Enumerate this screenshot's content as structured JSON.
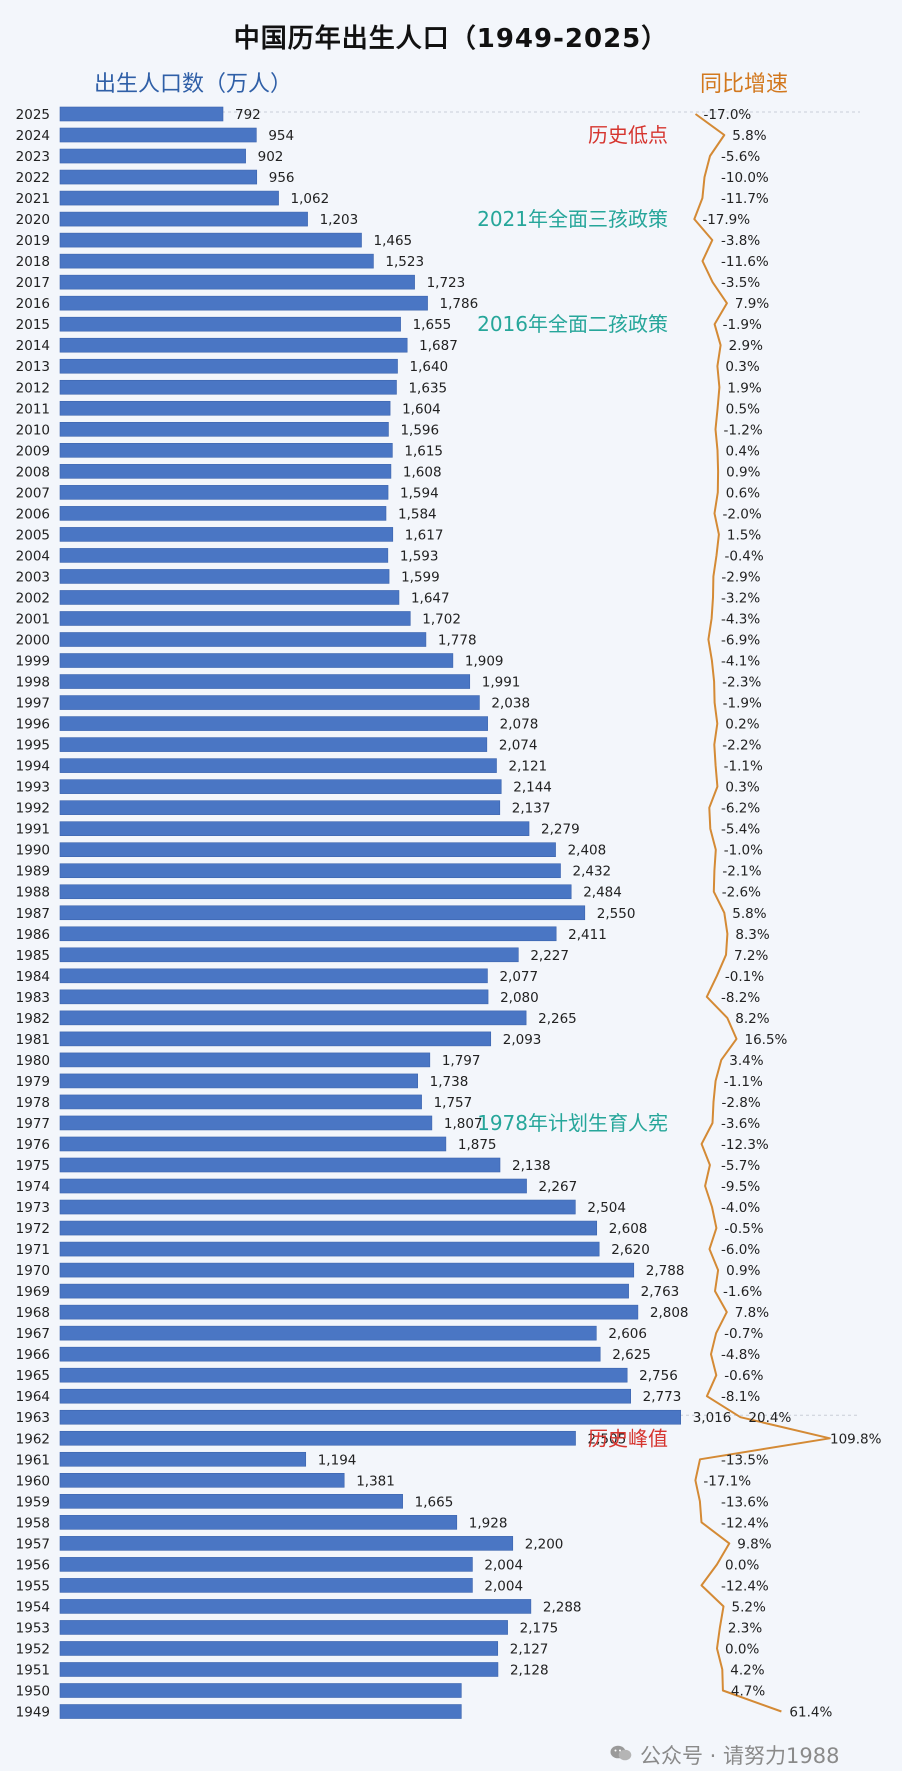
{
  "title": "中国历年出生人口（1949-2025）",
  "left_header": "出生人口数（万人）",
  "right_header": "同比增速",
  "watermark": "公众号 · 请努力1988",
  "colors": {
    "bar": "#4a76c4",
    "bar_edge": "#3c64ad",
    "growth_line": "#d48a35",
    "annotation_red": "#d6352f",
    "annotation_teal": "#26a69a",
    "left_header": "#2f5fa7",
    "right_header": "#d2781e"
  },
  "chart_data": {
    "type": "bar",
    "orientation": "horizontal",
    "categories": [
      "2025",
      "2024",
      "2023",
      "2022",
      "2021",
      "2020",
      "2019",
      "2018",
      "2017",
      "2016",
      "2015",
      "2014",
      "2013",
      "2012",
      "2011",
      "2010",
      "2009",
      "2008",
      "2007",
      "2006",
      "2005",
      "2004",
      "2003",
      "2002",
      "2001",
      "2000",
      "1999",
      "1998",
      "1997",
      "1996",
      "1995",
      "1994",
      "1993",
      "1992",
      "1991",
      "1990",
      "1989",
      "1988",
      "1987",
      "1986",
      "1985",
      "1984",
      "1983",
      "1982",
      "1981",
      "1980",
      "1979",
      "1978",
      "1977",
      "1976",
      "1975",
      "1974",
      "1973",
      "1972",
      "1971",
      "1970",
      "1969",
      "1968",
      "1967",
      "1966",
      "1965",
      "1964",
      "1963",
      "1962",
      "1961",
      "1960",
      "1959",
      "1958",
      "1957",
      "1956",
      "1955",
      "1954",
      "1953",
      "1952",
      "1951",
      "1950",
      "1949"
    ],
    "series": [
      {
        "name": "出生人口数（万人）",
        "values": [
          792,
          954,
          902,
          956,
          1062,
          1203,
          1465,
          1523,
          1723,
          1786,
          1655,
          1687,
          1640,
          1635,
          1604,
          1596,
          1615,
          1608,
          1594,
          1584,
          1617,
          1593,
          1599,
          1647,
          1702,
          1778,
          1909,
          1991,
          2038,
          2078,
          2074,
          2121,
          2144,
          2137,
          2279,
          2408,
          2432,
          2484,
          2550,
          2411,
          2227,
          2077,
          2080,
          2265,
          2093,
          1797,
          1738,
          1757,
          1807,
          1875,
          2138,
          2267,
          2504,
          2608,
          2620,
          2788,
          2763,
          2808,
          2606,
          2625,
          2756,
          2773,
          3016,
          2505,
          1194,
          1381,
          1665,
          1928,
          2200,
          2004,
          2004,
          2288,
          2175,
          2127,
          2128,
          1950,
          1950
        ],
        "labels": [
          "792",
          "954",
          "902",
          "956",
          "1,062",
          "1,203",
          "1,465",
          "1,523",
          "1,723",
          "1,786",
          "1,655",
          "1,687",
          "1,640",
          "1,635",
          "1,604",
          "1,596",
          "1,615",
          "1,608",
          "1,594",
          "1,584",
          "1,617",
          "1,593",
          "1,599",
          "1,647",
          "1,702",
          "1,778",
          "1,909",
          "1,991",
          "2,038",
          "2,078",
          "2,074",
          "2,121",
          "2,144",
          "2,137",
          "2,279",
          "2,408",
          "2,432",
          "2,484",
          "2,550",
          "2,411",
          "2,227",
          "2,077",
          "2,080",
          "2,265",
          "2,093",
          "1,797",
          "1,738",
          "1,757",
          "1,807",
          "1,875",
          "2,138",
          "2,267",
          "2,504",
          "2,608",
          "2,620",
          "2,788",
          "2,763",
          "2,808",
          "2,606",
          "2,625",
          "2,756",
          "2,773",
          "3,016",
          "2,505",
          "1,194",
          "1,381",
          "1,665",
          "1,928",
          "2,200",
          "2,004",
          "2,004",
          "2,288",
          "2,175",
          "2,127",
          "2,128",
          "",
          ""
        ]
      },
      {
        "name": "同比增速",
        "values": [
          -17.0,
          5.8,
          -5.6,
          -10.0,
          -11.7,
          -17.9,
          -3.8,
          -11.6,
          -3.5,
          7.9,
          -1.9,
          2.9,
          0.3,
          1.9,
          0.5,
          -1.2,
          0.4,
          0.9,
          0.6,
          -2.0,
          1.5,
          -0.4,
          -2.9,
          -3.2,
          -4.3,
          -6.9,
          -4.1,
          -2.3,
          -1.9,
          0.2,
          -2.2,
          -1.1,
          0.3,
          -6.2,
          -5.4,
          -1.0,
          -2.1,
          -2.6,
          5.8,
          8.3,
          7.2,
          -0.1,
          -8.2,
          8.2,
          16.5,
          3.4,
          -1.1,
          -2.8,
          -3.6,
          -12.3,
          -5.7,
          -9.5,
          -4.0,
          -0.5,
          -6.0,
          0.9,
          -1.6,
          7.8,
          -0.7,
          -4.8,
          -0.6,
          -8.1,
          20.4,
          109.8,
          -13.5,
          -17.1,
          -13.6,
          -12.4,
          9.8,
          0.0,
          -12.4,
          5.2,
          2.3,
          0.0,
          4.2,
          4.7,
          61.4
        ],
        "labels": [
          "-17.0%",
          "5.8%",
          "-5.6%",
          "-10.0%",
          "-11.7%",
          "-17.9%",
          "-3.8%",
          "-11.6%",
          "-3.5%",
          "7.9%",
          "-1.9%",
          "2.9%",
          "0.3%",
          "1.9%",
          "0.5%",
          "-1.2%",
          "0.4%",
          "0.9%",
          "0.6%",
          "-2.0%",
          "1.5%",
          "-0.4%",
          "-2.9%",
          "-3.2%",
          "-4.3%",
          "-6.9%",
          "-4.1%",
          "-2.3%",
          "-1.9%",
          "0.2%",
          "-2.2%",
          "-1.1%",
          "0.3%",
          "-6.2%",
          "-5.4%",
          "-1.0%",
          "-2.1%",
          "-2.6%",
          "5.8%",
          "8.3%",
          "7.2%",
          "-0.1%",
          "-8.2%",
          "8.2%",
          "16.5%",
          "3.4%",
          "-1.1%",
          "-2.8%",
          "-3.6%",
          "-12.3%",
          "-5.7%",
          "-9.5%",
          "-4.0%",
          "-0.5%",
          "-6.0%",
          "0.9%",
          "-1.6%",
          "7.8%",
          "-0.7%",
          "-4.8%",
          "-0.6%",
          "-8.1%",
          "20.4%",
          "109.8%",
          "-13.5%",
          "-17.1%",
          "-13.6%",
          "-12.4%",
          "9.8%",
          "0.0%",
          "-12.4%",
          "5.2%",
          "2.3%",
          "0.0%",
          "4.2%",
          "4.7%",
          "61.4%"
        ]
      }
    ],
    "xlim": [
      0,
      3350
    ],
    "annotations": [
      {
        "text": "历史低点",
        "year": "2024",
        "color": "red"
      },
      {
        "text": "2021年全面三孩政策",
        "year": "2020",
        "color": "teal"
      },
      {
        "text": "2016年全面二孩政策",
        "year": "2015",
        "color": "teal"
      },
      {
        "text": "1978年计划生育人宪",
        "year": "1977",
        "color": "teal"
      },
      {
        "text": "历史峰值",
        "year": "1962",
        "color": "red"
      }
    ]
  }
}
